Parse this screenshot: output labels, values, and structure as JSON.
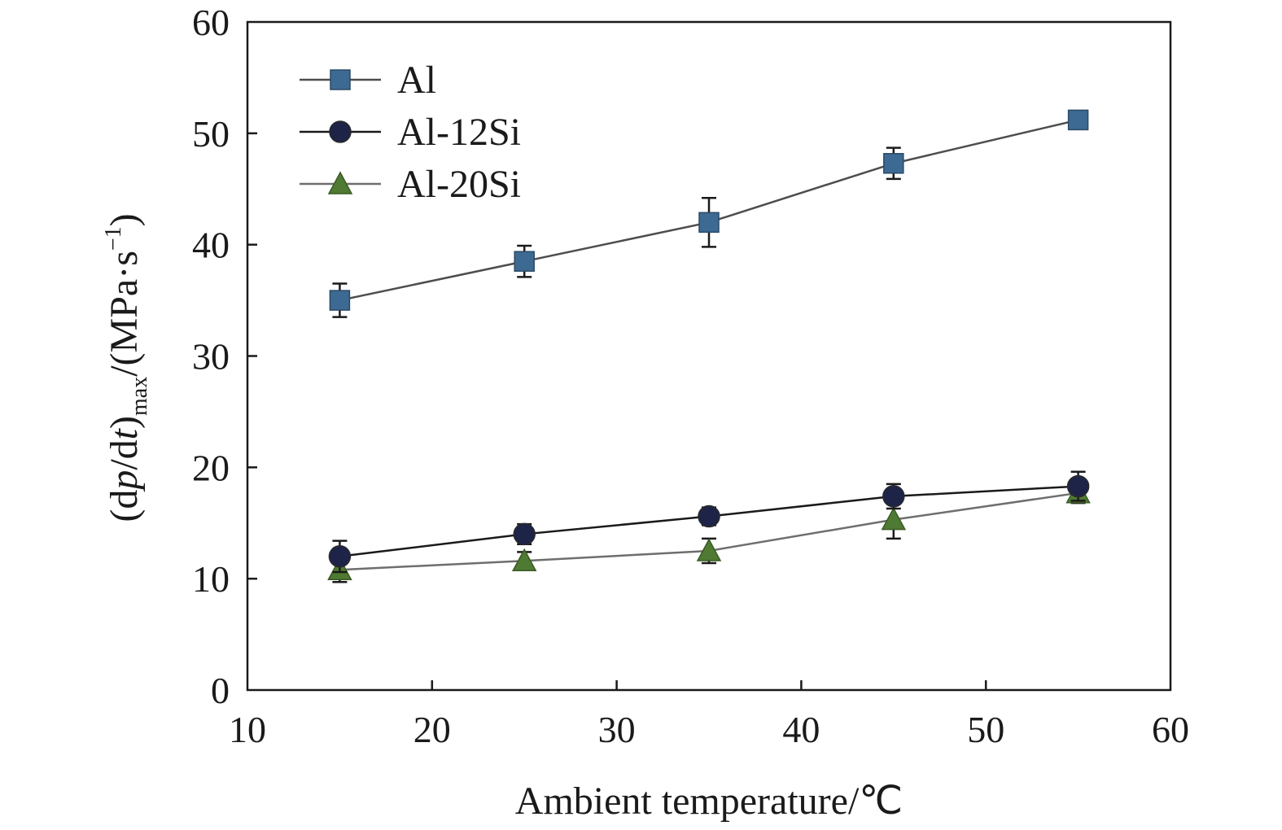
{
  "chart_data": {
    "type": "line",
    "title": "",
    "xlabel": "Ambient temperature/℃",
    "ylabel": {
      "parts": [
        "(d",
        "p",
        "/d",
        "t",
        ")",
        "max",
        "/(MPa·s",
        "−1",
        ")"
      ]
    },
    "xlim": [
      10,
      60
    ],
    "ylim": [
      0,
      60
    ],
    "xticks": [
      10,
      20,
      30,
      40,
      50,
      60
    ],
    "yticks": [
      0,
      10,
      20,
      30,
      40,
      50,
      60
    ],
    "grid": false,
    "legend_position": "top-left",
    "x": [
      15,
      25,
      35,
      45,
      55
    ],
    "series": [
      {
        "name": "Al",
        "marker": "square",
        "color": "#3d6a93",
        "line_color": "#4d4d4d",
        "values": [
          35.0,
          38.5,
          42.0,
          47.3,
          51.2
        ],
        "errors": [
          1.5,
          1.4,
          2.2,
          1.4,
          0.5
        ]
      },
      {
        "name": "Al-12Si",
        "marker": "circle",
        "color": "#1e2448",
        "line_color": "#1a1a1a",
        "values": [
          12.0,
          14.0,
          15.6,
          17.4,
          18.3
        ],
        "errors": [
          1.4,
          0.9,
          0.8,
          1.1,
          1.3
        ]
      },
      {
        "name": "Al-20Si",
        "marker": "triangle",
        "color": "#4f7a33",
        "line_color": "#6e6e6e",
        "values": [
          10.8,
          11.6,
          12.5,
          15.3,
          17.7
        ],
        "errors": [
          1.1,
          0.8,
          1.1,
          1.7,
          0.9
        ]
      }
    ]
  }
}
